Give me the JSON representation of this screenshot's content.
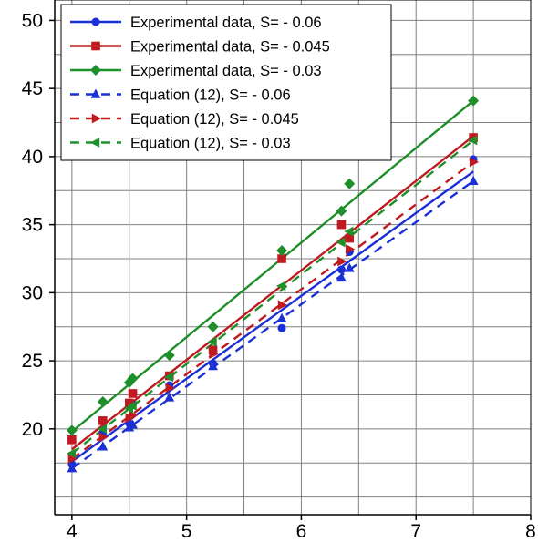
{
  "chart_data": {
    "type": "scatter",
    "title": "",
    "xlabel": "",
    "ylabel": "",
    "xlim": [
      3.85,
      8
    ],
    "ylim": [
      13.7,
      51.5
    ],
    "xticks": [
      4,
      5,
      6,
      7,
      8
    ],
    "yticks": [
      20,
      25,
      30,
      35,
      40,
      45,
      50
    ],
    "xtick_labels": [
      "4",
      "5",
      "6",
      "7",
      "8"
    ],
    "ytick_labels": [
      "20",
      "25",
      "30",
      "35",
      "40",
      "45",
      "50"
    ],
    "grid": true,
    "legend_position": "top-left",
    "series": [
      {
        "name": "Experimental data, S= - 0.06",
        "color": "#1a2fd6",
        "marker": "circle",
        "line_style": "solid",
        "points": [
          [
            4.0,
            17.4
          ],
          [
            4.27,
            19.7
          ],
          [
            4.5,
            20.4
          ],
          [
            4.53,
            21.8
          ],
          [
            4.85,
            23.2
          ],
          [
            5.23,
            24.8
          ],
          [
            5.83,
            27.4
          ],
          [
            6.35,
            31.7
          ],
          [
            6.42,
            33.0
          ],
          [
            7.5,
            39.8
          ]
        ],
        "fit": [
          [
            4.0,
            17.6
          ],
          [
            7.5,
            38.9
          ]
        ]
      },
      {
        "name": "Experimental data, S= - 0.045",
        "color": "#c0191f",
        "marker": "square",
        "line_style": "solid",
        "points": [
          [
            4.0,
            19.2
          ],
          [
            4.27,
            20.6
          ],
          [
            4.5,
            21.9
          ],
          [
            4.53,
            22.6
          ],
          [
            4.85,
            23.9
          ],
          [
            5.23,
            25.8
          ],
          [
            5.83,
            32.5
          ],
          [
            6.35,
            35.0
          ],
          [
            6.42,
            34.0
          ],
          [
            7.5,
            41.4
          ]
        ],
        "fit": [
          [
            4.0,
            18.5
          ],
          [
            7.5,
            41.5
          ]
        ]
      },
      {
        "name": "Experimental data, S= - 0.03",
        "color": "#1e8f2a",
        "marker": "diamond",
        "line_style": "solid",
        "points": [
          [
            4.0,
            19.9
          ],
          [
            4.27,
            22.0
          ],
          [
            4.5,
            23.4
          ],
          [
            4.53,
            23.7
          ],
          [
            4.85,
            25.4
          ],
          [
            5.23,
            27.5
          ],
          [
            5.83,
            33.1
          ],
          [
            6.35,
            36.0
          ],
          [
            6.42,
            38.0
          ],
          [
            7.5,
            44.1
          ]
        ],
        "fit": [
          [
            4.0,
            19.8
          ],
          [
            7.5,
            44.1
          ]
        ]
      },
      {
        "name": "Equation (12), S= - 0.06",
        "color": "#1a2fd6",
        "marker": "triangle-up",
        "line_style": "dashed",
        "points": [
          [
            4.0,
            17.1
          ],
          [
            4.27,
            18.7
          ],
          [
            4.5,
            20.1
          ],
          [
            4.53,
            20.3
          ],
          [
            4.85,
            22.3
          ],
          [
            5.23,
            24.6
          ],
          [
            5.83,
            28.1
          ],
          [
            6.35,
            31.1
          ],
          [
            6.42,
            31.8
          ],
          [
            7.5,
            38.2
          ]
        ],
        "fit": [
          [
            4.0,
            17.1
          ],
          [
            7.5,
            38.2
          ]
        ]
      },
      {
        "name": "Equation (12), S= - 0.045",
        "color": "#c0191f",
        "marker": "triangle-right",
        "line_style": "dashed",
        "points": [
          [
            4.0,
            17.8
          ],
          [
            4.27,
            19.4
          ],
          [
            4.5,
            20.8
          ],
          [
            4.53,
            21.0
          ],
          [
            4.85,
            23.0
          ],
          [
            5.23,
            25.5
          ],
          [
            5.83,
            29.1
          ],
          [
            6.35,
            32.3
          ],
          [
            6.42,
            33.2
          ],
          [
            7.5,
            39.6
          ]
        ],
        "fit": [
          [
            4.0,
            17.8
          ],
          [
            7.5,
            39.6
          ]
        ]
      },
      {
        "name": "Equation (12), S= - 0.03",
        "color": "#1e8f2a",
        "marker": "triangle-left",
        "line_style": "dashed",
        "points": [
          [
            4.0,
            18.2
          ],
          [
            4.27,
            20.0
          ],
          [
            4.5,
            21.5
          ],
          [
            4.53,
            21.7
          ],
          [
            4.85,
            23.8
          ],
          [
            5.23,
            26.4
          ],
          [
            5.83,
            30.5
          ],
          [
            6.35,
            33.7
          ],
          [
            6.42,
            34.5
          ],
          [
            7.5,
            41.2
          ]
        ],
        "fit": [
          [
            4.0,
            18.2
          ],
          [
            7.5,
            41.2
          ]
        ]
      }
    ]
  }
}
